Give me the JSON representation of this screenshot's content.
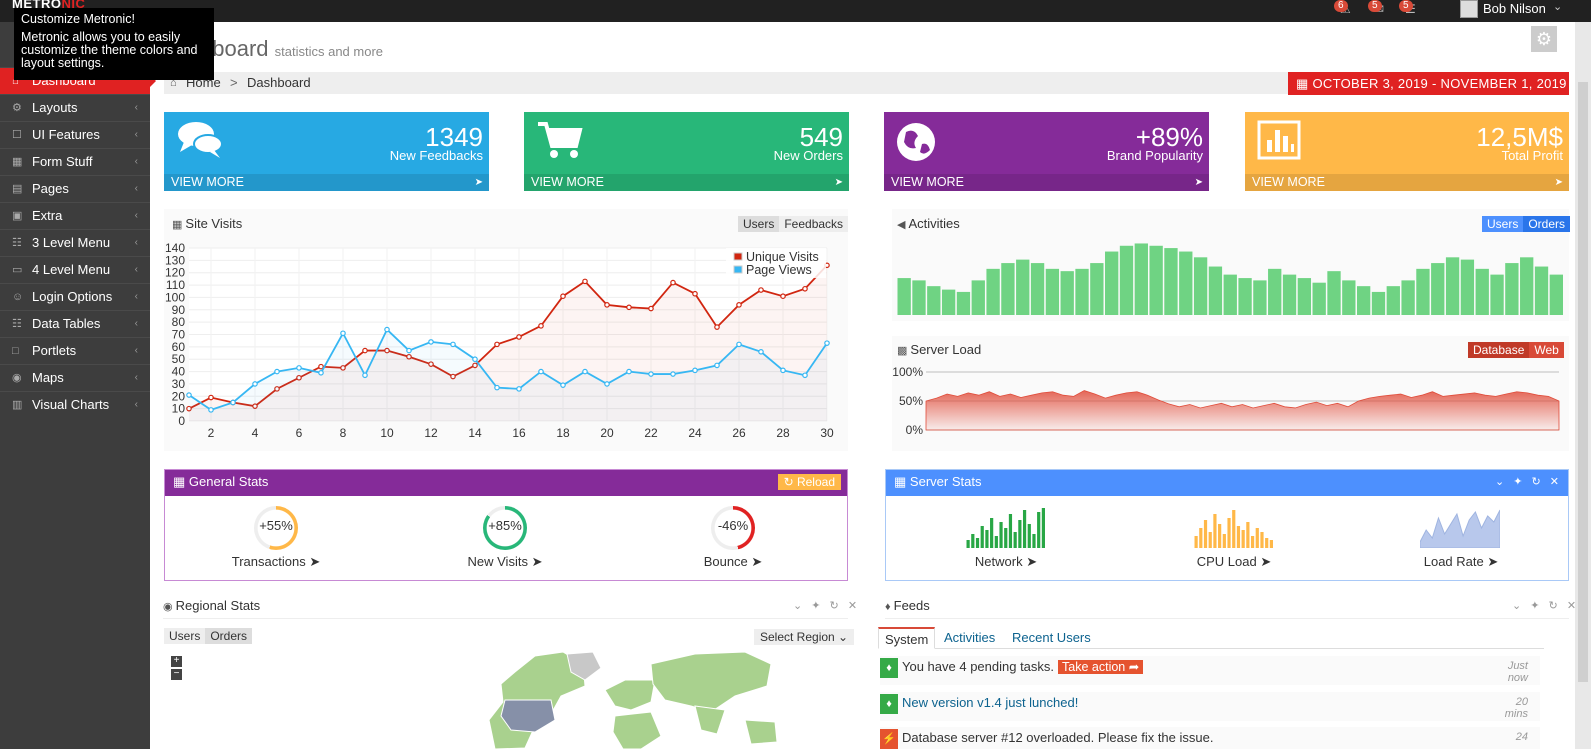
{
  "brand": {
    "part1": "METRO",
    "part2": "NIC"
  },
  "topbar": {
    "notifications": [
      {
        "icon": "warning-icon",
        "count": "6"
      },
      {
        "icon": "envelope-icon",
        "count": "5"
      },
      {
        "icon": "tasks-icon",
        "count": "5"
      }
    ],
    "user_name": "Bob Nilson"
  },
  "tooltip": {
    "title": "Customize Metronic!",
    "body": "Metronic allows you to easily customize the theme colors and layout settings."
  },
  "sidebar": {
    "items": [
      {
        "label": "Dashboard",
        "icon": "home-icon",
        "active": true
      },
      {
        "label": "Layouts",
        "icon": "cogs-icon"
      },
      {
        "label": "UI Features",
        "icon": "bookmark-icon"
      },
      {
        "label": "Form Stuff",
        "icon": "table-icon"
      },
      {
        "label": "Pages",
        "icon": "briefcase-icon"
      },
      {
        "label": "Extra",
        "icon": "gift-icon"
      },
      {
        "label": "3 Level Menu",
        "icon": "sitemap-icon"
      },
      {
        "label": "4 Level Menu",
        "icon": "folder-icon"
      },
      {
        "label": "Login Options",
        "icon": "user-icon"
      },
      {
        "label": "Data Tables",
        "icon": "th-icon"
      },
      {
        "label": "Portlets",
        "icon": "file-icon"
      },
      {
        "label": "Maps",
        "icon": "map-marker-icon"
      },
      {
        "label": "Visual Charts",
        "icon": "bar-chart-icon"
      }
    ]
  },
  "page": {
    "title": "Dashboard",
    "title_visible": "hboard",
    "subtitle": "statistics and more"
  },
  "breadcrumb": {
    "home": "Home",
    "separator": ">",
    "current": "Dashboard"
  },
  "daterange": "OCTOBER 3, 2019 - NOVEMBER 1, 2019",
  "stats": [
    {
      "number": "1349",
      "label": "New Feedbacks",
      "more": "VIEW MORE",
      "color": "#27a9e3",
      "icon": "comments-icon"
    },
    {
      "number": "549",
      "label": "New Orders",
      "more": "VIEW MORE",
      "color": "#28b779",
      "icon": "shopping-cart-icon"
    },
    {
      "number": "+89%",
      "label": "Brand Popularity",
      "more": "VIEW MORE",
      "color": "#852b99",
      "icon": "globe-icon"
    },
    {
      "number": "12,5M$",
      "label": "Total Profit",
      "more": "VIEW MORE",
      "color": "#ffb848",
      "icon": "bar-chart-icon"
    }
  ],
  "site_visits": {
    "title": "Site Visits",
    "toggle": [
      "Users",
      "Feedbacks"
    ]
  },
  "activities": {
    "title": "Activities",
    "toggle": [
      "Users",
      "Orders"
    ]
  },
  "server_load": {
    "title": "Server Load",
    "toggle": [
      "Database",
      "Web"
    ]
  },
  "general_stats": {
    "title": "General Stats",
    "reload": "Reload",
    "items": [
      {
        "value": "+55%",
        "label": "Transactions",
        "color": "#ffb848",
        "fraction": 0.55
      },
      {
        "value": "+85%",
        "label": "New Visits",
        "color": "#28b779",
        "fraction": 0.85
      },
      {
        "value": "-46%",
        "label": "Bounce",
        "color": "#e02222",
        "fraction": 0.46
      }
    ]
  },
  "server_stats": {
    "title": "Server Stats",
    "items": [
      {
        "label": "Network",
        "color": "#28a745"
      },
      {
        "label": "CPU Load",
        "color": "#ffb848"
      },
      {
        "label": "Load Rate",
        "color": "#9fb4e0"
      }
    ]
  },
  "regional": {
    "title": "Regional Stats",
    "toggle": [
      "Users",
      "Orders"
    ],
    "select": "Select Region",
    "zoom_in": "+",
    "zoom_out": "−"
  },
  "feeds": {
    "title": "Feeds",
    "tabs": [
      "System",
      "Activities",
      "Recent Users"
    ],
    "items": [
      {
        "text": "You have 4 pending tasks.",
        "action": "Take action",
        "time": "Just now",
        "color": "#35aa47",
        "icon": "bell-icon"
      },
      {
        "text": "New version v1.4 just lunched!",
        "time": "20 mins",
        "color": "#35aa47",
        "icon": "bell-icon",
        "link": true
      },
      {
        "text": "Database server #12 overloaded. Please fix the issue.",
        "time": "24",
        "color": "#e5532f",
        "icon": "bolt-icon"
      }
    ]
  },
  "chart_data": [
    {
      "type": "line",
      "x": [
        1,
        2,
        3,
        4,
        5,
        6,
        7,
        8,
        9,
        10,
        11,
        12,
        13,
        14,
        15,
        16,
        17,
        18,
        19,
        20,
        21,
        22,
        23,
        24,
        25,
        26,
        27,
        28,
        29,
        30
      ],
      "series": [
        {
          "name": "Unique Visits",
          "color": "#d12610",
          "values": [
            10,
            19,
            15,
            12,
            26,
            35,
            44,
            43,
            57,
            57,
            52,
            46,
            36,
            45,
            62,
            68,
            77,
            101,
            113,
            94,
            92,
            91,
            112,
            103,
            76,
            94,
            106,
            101,
            107,
            126
          ]
        },
        {
          "name": "Page Views",
          "color": "#37b7f3",
          "values": [
            21,
            9,
            15,
            30,
            40,
            43,
            39,
            71,
            37,
            74,
            57,
            64,
            62,
            50,
            27,
            26,
            40,
            29,
            40,
            30,
            40,
            38,
            38,
            41,
            45,
            62,
            56,
            41,
            37,
            63
          ]
        }
      ],
      "xticks": [
        2,
        4,
        6,
        8,
        10,
        12,
        14,
        16,
        18,
        20,
        22,
        24,
        26,
        28,
        30
      ],
      "yticks": [
        0,
        10,
        20,
        30,
        40,
        50,
        60,
        70,
        80,
        90,
        100,
        110,
        120,
        130,
        140
      ],
      "ylim": [
        0,
        140
      ],
      "legend": "top-right",
      "grid": true
    },
    {
      "type": "bar",
      "name": "Activities",
      "color": "#6fd383",
      "values": [
        32,
        30,
        25,
        22,
        20,
        30,
        40,
        45,
        48,
        45,
        40,
        38,
        40,
        45,
        55,
        60,
        62,
        60,
        58,
        55,
        50,
        42,
        35,
        32,
        30,
        40,
        35,
        32,
        28,
        38,
        30,
        25,
        20,
        25,
        30,
        40,
        45,
        50,
        48,
        40,
        35,
        45,
        50,
        42,
        35
      ]
    },
    {
      "type": "area",
      "name": "Server Load",
      "color": "#e04c3a",
      "yticks": [
        "0%",
        "50%",
        "100%"
      ],
      "values": [
        50,
        55,
        62,
        58,
        64,
        60,
        66,
        58,
        62,
        56,
        60,
        64,
        66,
        60,
        58,
        68,
        62,
        55,
        60,
        64,
        66,
        60,
        52,
        45,
        40,
        44,
        38,
        42,
        46,
        40,
        44,
        38,
        42,
        46,
        40,
        38,
        44,
        48,
        42,
        46,
        40,
        50,
        55,
        58,
        60,
        62,
        56,
        60,
        66,
        58,
        60,
        62,
        64,
        60,
        58,
        62,
        66,
        64,
        60,
        58,
        50
      ]
    }
  ]
}
